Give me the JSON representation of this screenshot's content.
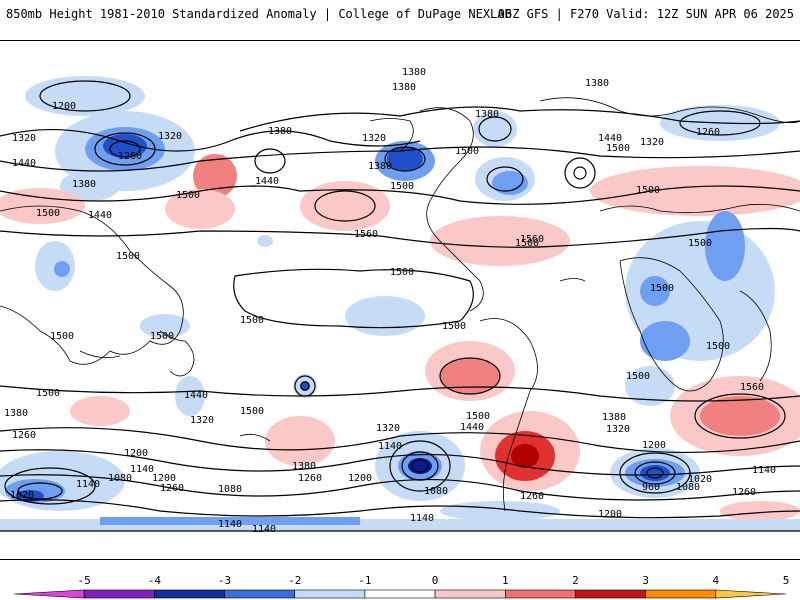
{
  "header": {
    "title": "850mb Height 1981-2010 Standardized Anomaly | College of DuPage NEXLAB",
    "run_info": "06Z GFS | F270 Valid: 12Z SUN APR 06 2025"
  },
  "map": {
    "contour_labels": [
      "1200",
      "1320",
      "1260",
      "1440",
      "1380",
      "1500",
      "1440",
      "1320",
      "1500",
      "1380",
      "1380",
      "1380",
      "1500",
      "1440",
      "1560",
      "1380",
      "1320",
      "1500",
      "1500",
      "1380",
      "1440",
      "1320",
      "1260",
      "1500",
      "1560",
      "1380",
      "1500",
      "1500",
      "1500",
      "1500",
      "1500",
      "1500",
      "1500",
      "1500",
      "1440",
      "1500",
      "1380",
      "1320",
      "1260",
      "1500",
      "1200",
      "1140",
      "1080",
      "1200",
      "1260",
      "1380",
      "1260",
      "1080",
      "1020",
      "1140",
      "1140",
      "1140",
      "1140",
      "1320",
      "1140",
      "1200",
      "1080",
      "1260",
      "1500",
      "1440",
      "1560",
      "1380",
      "1320",
      "1200",
      "1020",
      "960",
      "1080",
      "1260",
      "1140",
      "1200",
      "1500",
      "1500",
      "1500"
    ],
    "colors": {
      "coastline": "#000000",
      "contour": "#000000",
      "positive_1": "#fbc8c8",
      "positive_2": "#f08080",
      "positive_3": "#e03030",
      "positive_4": "#b00000",
      "negative_1": "#c6dcf6",
      "negative_2": "#6f9ff0",
      "negative_3": "#2050c8",
      "negative_4": "#0a1e8a"
    }
  },
  "colorbar": {
    "ticks": [
      "-5",
      "-4",
      "-3",
      "-2",
      "-1",
      "0",
      "1",
      "2",
      "3",
      "4",
      "5"
    ],
    "colors": [
      "#e040e0",
      "#8020c0",
      "#1030a0",
      "#3a6ee0",
      "#c6dcf6",
      "#ffffff",
      "#fbc8c8",
      "#f07070",
      "#c01818",
      "#ff8c00",
      "#ffc840"
    ]
  }
}
